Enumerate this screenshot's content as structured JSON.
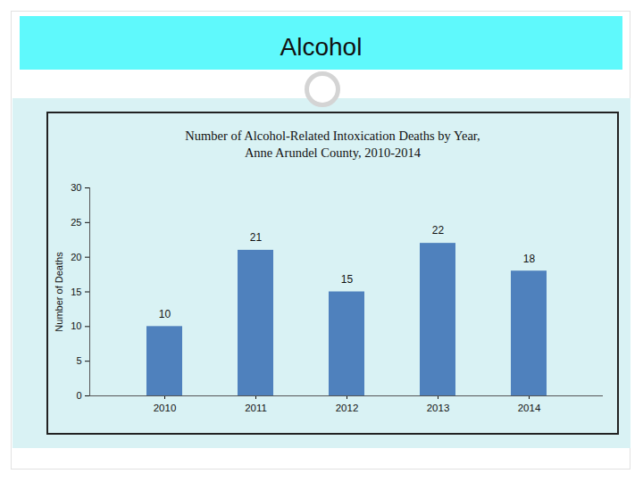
{
  "slide": {
    "title": "Alcohol"
  },
  "chart_data": {
    "type": "bar",
    "title": "Number of Alcohol-Related Intoxication Deaths by Year,\nAnne Arundel County, 2010-2014",
    "y_label": "Number of Deaths",
    "categories": [
      "2010",
      "2011",
      "2012",
      "2013",
      "2014"
    ],
    "values": [
      10,
      21,
      15,
      22,
      18
    ],
    "color": "#4f81bd",
    "ylim": [
      0,
      30
    ],
    "yticks": [
      0,
      5,
      10,
      15,
      20,
      25,
      30
    ],
    "grid": false,
    "data_labels": true
  }
}
